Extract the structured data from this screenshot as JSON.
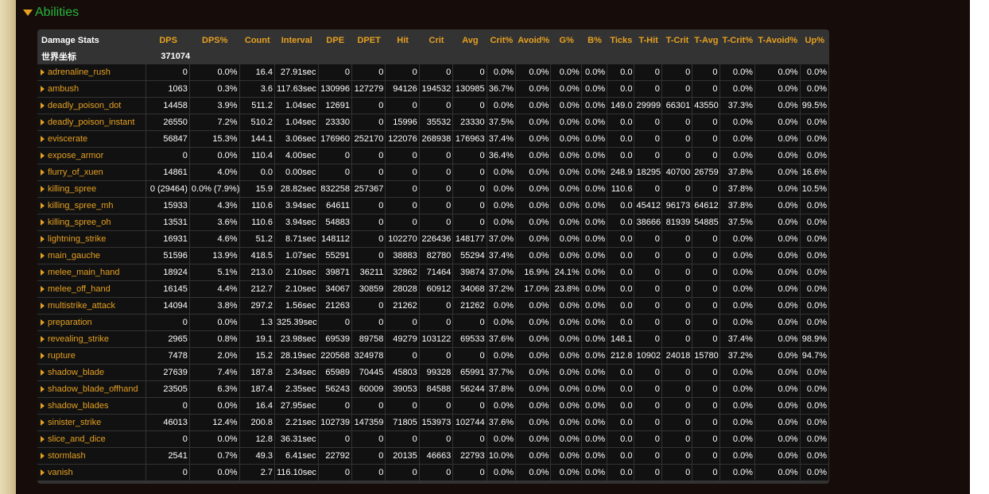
{
  "section": {
    "title": "Abilities"
  },
  "table": {
    "columns": [
      "Damage Stats",
      "DPS",
      "DPS%",
      "Count",
      "Interval",
      "DPE",
      "DPET",
      "Hit",
      "Crit",
      "Avg",
      "Crit%",
      "Avoid%",
      "G%",
      "B%",
      "Ticks",
      "T-Hit",
      "T-Crit",
      "T-Avg",
      "T-Crit%",
      "T-Avoid%",
      "Up%"
    ],
    "summary": {
      "name": "世界坐标",
      "dps": "371074"
    },
    "rows": [
      [
        "adrenaline_rush",
        "0",
        "0.0%",
        "16.4",
        "27.91sec",
        "0",
        "0",
        "0",
        "0",
        "0",
        "0.0%",
        "0.0%",
        "0.0%",
        "0.0%",
        "0.0",
        "0",
        "0",
        "0",
        "0.0%",
        "0.0%",
        "0.0%"
      ],
      [
        "ambush",
        "1063",
        "0.3%",
        "3.6",
        "117.63sec",
        "130996",
        "127279",
        "94126",
        "194532",
        "130985",
        "36.7%",
        "0.0%",
        "0.0%",
        "0.0%",
        "0.0",
        "0",
        "0",
        "0",
        "0.0%",
        "0.0%",
        "0.0%"
      ],
      [
        "deadly_poison_dot",
        "14458",
        "3.9%",
        "511.2",
        "1.04sec",
        "12691",
        "0",
        "0",
        "0",
        "0",
        "0.0%",
        "0.0%",
        "0.0%",
        "0.0%",
        "149.0",
        "29999",
        "66301",
        "43550",
        "37.3%",
        "0.0%",
        "99.5%"
      ],
      [
        "deadly_poison_instant",
        "26550",
        "7.2%",
        "510.2",
        "1.04sec",
        "23330",
        "0",
        "15996",
        "35532",
        "23330",
        "37.5%",
        "0.0%",
        "0.0%",
        "0.0%",
        "0.0",
        "0",
        "0",
        "0",
        "0.0%",
        "0.0%",
        "0.0%"
      ],
      [
        "eviscerate",
        "56847",
        "15.3%",
        "144.1",
        "3.06sec",
        "176960",
        "252170",
        "122076",
        "268938",
        "176963",
        "37.4%",
        "0.0%",
        "0.0%",
        "0.0%",
        "0.0",
        "0",
        "0",
        "0",
        "0.0%",
        "0.0%",
        "0.0%"
      ],
      [
        "expose_armor",
        "0",
        "0.0%",
        "110.4",
        "4.00sec",
        "0",
        "0",
        "0",
        "0",
        "0",
        "36.4%",
        "0.0%",
        "0.0%",
        "0.0%",
        "0.0",
        "0",
        "0",
        "0",
        "0.0%",
        "0.0%",
        "0.0%"
      ],
      [
        "flurry_of_xuen",
        "14861",
        "4.0%",
        "0.0",
        "0.00sec",
        "0",
        "0",
        "0",
        "0",
        "0",
        "0.0%",
        "0.0%",
        "0.0%",
        "0.0%",
        "248.9",
        "18295",
        "40700",
        "26759",
        "37.8%",
        "0.0%",
        "16.6%"
      ],
      [
        "killing_spree",
        "0 (29464)",
        "0.0% (7.9%)",
        "15.9",
        "28.82sec",
        "832258",
        "257367",
        "0",
        "0",
        "0",
        "0.0%",
        "0.0%",
        "0.0%",
        "0.0%",
        "110.6",
        "0",
        "0",
        "0",
        "37.8%",
        "0.0%",
        "10.5%"
      ],
      [
        "killing_spree_mh",
        "15933",
        "4.3%",
        "110.6",
        "3.94sec",
        "64611",
        "0",
        "0",
        "0",
        "0",
        "0.0%",
        "0.0%",
        "0.0%",
        "0.0%",
        "0.0",
        "45412",
        "96173",
        "64612",
        "37.8%",
        "0.0%",
        "0.0%"
      ],
      [
        "killing_spree_oh",
        "13531",
        "3.6%",
        "110.6",
        "3.94sec",
        "54883",
        "0",
        "0",
        "0",
        "0",
        "0.0%",
        "0.0%",
        "0.0%",
        "0.0%",
        "0.0",
        "38666",
        "81939",
        "54885",
        "37.5%",
        "0.0%",
        "0.0%"
      ],
      [
        "lightning_strike",
        "16931",
        "4.6%",
        "51.2",
        "8.71sec",
        "148112",
        "0",
        "102270",
        "226436",
        "148177",
        "37.0%",
        "0.0%",
        "0.0%",
        "0.0%",
        "0.0",
        "0",
        "0",
        "0",
        "0.0%",
        "0.0%",
        "0.0%"
      ],
      [
        "main_gauche",
        "51596",
        "13.9%",
        "418.5",
        "1.07sec",
        "55291",
        "0",
        "38883",
        "82780",
        "55294",
        "37.4%",
        "0.0%",
        "0.0%",
        "0.0%",
        "0.0",
        "0",
        "0",
        "0",
        "0.0%",
        "0.0%",
        "0.0%"
      ],
      [
        "melee_main_hand",
        "18924",
        "5.1%",
        "213.0",
        "2.10sec",
        "39871",
        "36211",
        "32862",
        "71464",
        "39874",
        "37.0%",
        "16.9%",
        "24.1%",
        "0.0%",
        "0.0",
        "0",
        "0",
        "0",
        "0.0%",
        "0.0%",
        "0.0%"
      ],
      [
        "melee_off_hand",
        "16145",
        "4.4%",
        "212.7",
        "2.10sec",
        "34067",
        "30859",
        "28028",
        "60912",
        "34068",
        "37.2%",
        "17.0%",
        "23.8%",
        "0.0%",
        "0.0",
        "0",
        "0",
        "0",
        "0.0%",
        "0.0%",
        "0.0%"
      ],
      [
        "multistrike_attack",
        "14094",
        "3.8%",
        "297.2",
        "1.56sec",
        "21263",
        "0",
        "21262",
        "0",
        "21262",
        "0.0%",
        "0.0%",
        "0.0%",
        "0.0%",
        "0.0",
        "0",
        "0",
        "0",
        "0.0%",
        "0.0%",
        "0.0%"
      ],
      [
        "preparation",
        "0",
        "0.0%",
        "1.3",
        "325.39sec",
        "0",
        "0",
        "0",
        "0",
        "0",
        "0.0%",
        "0.0%",
        "0.0%",
        "0.0%",
        "0.0",
        "0",
        "0",
        "0",
        "0.0%",
        "0.0%",
        "0.0%"
      ],
      [
        "revealing_strike",
        "2965",
        "0.8%",
        "19.1",
        "23.98sec",
        "69539",
        "89758",
        "49279",
        "103122",
        "69533",
        "37.6%",
        "0.0%",
        "0.0%",
        "0.0%",
        "148.1",
        "0",
        "0",
        "0",
        "37.4%",
        "0.0%",
        "98.9%"
      ],
      [
        "rupture",
        "7478",
        "2.0%",
        "15.2",
        "28.19sec",
        "220568",
        "324978",
        "0",
        "0",
        "0",
        "0.0%",
        "0.0%",
        "0.0%",
        "0.0%",
        "212.8",
        "10902",
        "24018",
        "15780",
        "37.2%",
        "0.0%",
        "94.7%"
      ],
      [
        "shadow_blade",
        "27639",
        "7.4%",
        "187.8",
        "2.34sec",
        "65989",
        "70445",
        "45803",
        "99328",
        "65991",
        "37.7%",
        "0.0%",
        "0.0%",
        "0.0%",
        "0.0",
        "0",
        "0",
        "0",
        "0.0%",
        "0.0%",
        "0.0%"
      ],
      [
        "shadow_blade_offhand",
        "23505",
        "6.3%",
        "187.4",
        "2.35sec",
        "56243",
        "60009",
        "39053",
        "84588",
        "56244",
        "37.8%",
        "0.0%",
        "0.0%",
        "0.0%",
        "0.0",
        "0",
        "0",
        "0",
        "0.0%",
        "0.0%",
        "0.0%"
      ],
      [
        "shadow_blades",
        "0",
        "0.0%",
        "16.4",
        "27.95sec",
        "0",
        "0",
        "0",
        "0",
        "0",
        "0.0%",
        "0.0%",
        "0.0%",
        "0.0%",
        "0.0",
        "0",
        "0",
        "0",
        "0.0%",
        "0.0%",
        "0.0%"
      ],
      [
        "sinister_strike",
        "46013",
        "12.4%",
        "200.8",
        "2.21sec",
        "102739",
        "147359",
        "71805",
        "153973",
        "102744",
        "37.6%",
        "0.0%",
        "0.0%",
        "0.0%",
        "0.0",
        "0",
        "0",
        "0",
        "0.0%",
        "0.0%",
        "0.0%"
      ],
      [
        "slice_and_dice",
        "0",
        "0.0%",
        "12.8",
        "36.31sec",
        "0",
        "0",
        "0",
        "0",
        "0",
        "0.0%",
        "0.0%",
        "0.0%",
        "0.0%",
        "0.0",
        "0",
        "0",
        "0",
        "0.0%",
        "0.0%",
        "0.0%"
      ],
      [
        "stormlash",
        "2541",
        "0.7%",
        "49.3",
        "6.41sec",
        "22792",
        "0",
        "20135",
        "46663",
        "22793",
        "10.0%",
        "0.0%",
        "0.0%",
        "0.0%",
        "0.0",
        "0",
        "0",
        "0",
        "0.0%",
        "0.0%",
        "0.0%"
      ],
      [
        "vanish",
        "0",
        "0.0%",
        "2.7",
        "116.10sec",
        "0",
        "0",
        "0",
        "0",
        "0",
        "0.0%",
        "0.0%",
        "0.0%",
        "0.0%",
        "0.0",
        "0",
        "0",
        "0",
        "0.0%",
        "0.0%",
        "0.0%"
      ]
    ]
  },
  "colors": {
    "accent": "#e5a021",
    "section_title": "#28b33e",
    "panel_bg": "#160d0a",
    "table_bg": "#333333",
    "cell_bg": "#111111"
  },
  "icons": {
    "section_toggle": "triangle-down-icon",
    "row_expand": "triangle-right-icon"
  }
}
